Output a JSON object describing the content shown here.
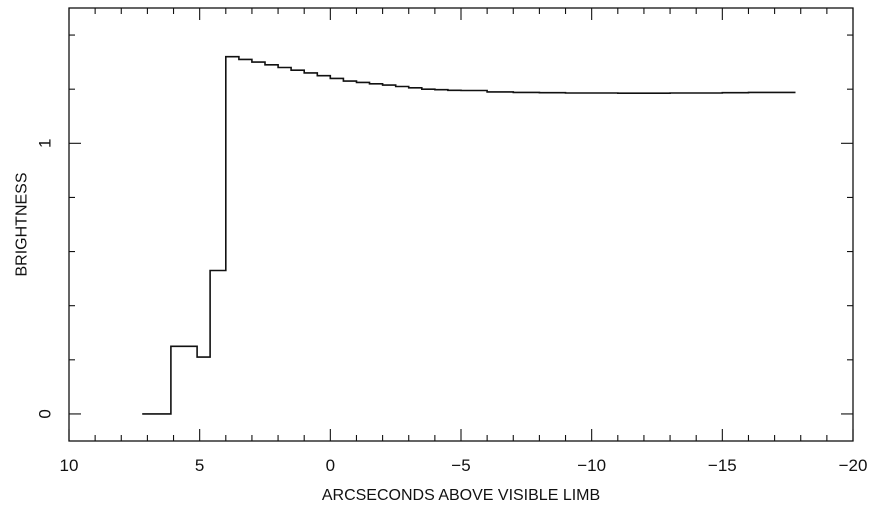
{
  "chart_data": {
    "type": "line",
    "step": true,
    "title": "",
    "xlabel": "ARCSECONDS ABOVE VISIBLE LIMB",
    "ylabel": "BRIGHTNESS",
    "xlim": [
      10,
      -20
    ],
    "ylim": [
      -0.1,
      1.5
    ],
    "xticks": [
      10,
      5,
      0,
      -5,
      -10,
      -15,
      -20
    ],
    "xtick_labels": [
      "10",
      "5",
      "0",
      "−5",
      "−10",
      "−15",
      "−20"
    ],
    "yticks": [
      0,
      1
    ],
    "ytick_labels": [
      "0",
      "1"
    ],
    "grid": false,
    "color": "#111111",
    "series": [
      {
        "x": [
          7.2,
          6.1,
          6.1,
          5.1,
          5.1,
          4.6,
          4.6,
          4.0,
          4.0,
          3.5,
          3.0,
          2.5,
          2.0,
          1.5,
          1.0,
          0.5,
          0.0,
          -0.5,
          -1.0,
          -1.5,
          -2.0,
          -2.5,
          -3.0,
          -3.5,
          -4.0,
          -4.5,
          -5.0,
          -6.0,
          -7.0,
          -8.0,
          -9.0,
          -10.0,
          -11.0,
          -12.0,
          -13.0,
          -14.0,
          -15.0,
          -16.0,
          -17.0,
          -17.8
        ],
        "y": [
          0.0,
          0.0,
          0.25,
          0.25,
          0.21,
          0.21,
          0.53,
          0.53,
          1.32,
          1.31,
          1.3,
          1.29,
          1.28,
          1.27,
          1.26,
          1.25,
          1.24,
          1.23,
          1.225,
          1.22,
          1.215,
          1.21,
          1.205,
          1.2,
          1.198,
          1.196,
          1.195,
          1.19,
          1.188,
          1.187,
          1.186,
          1.186,
          1.185,
          1.185,
          1.186,
          1.186,
          1.187,
          1.188,
          1.188,
          1.188
        ]
      }
    ]
  }
}
